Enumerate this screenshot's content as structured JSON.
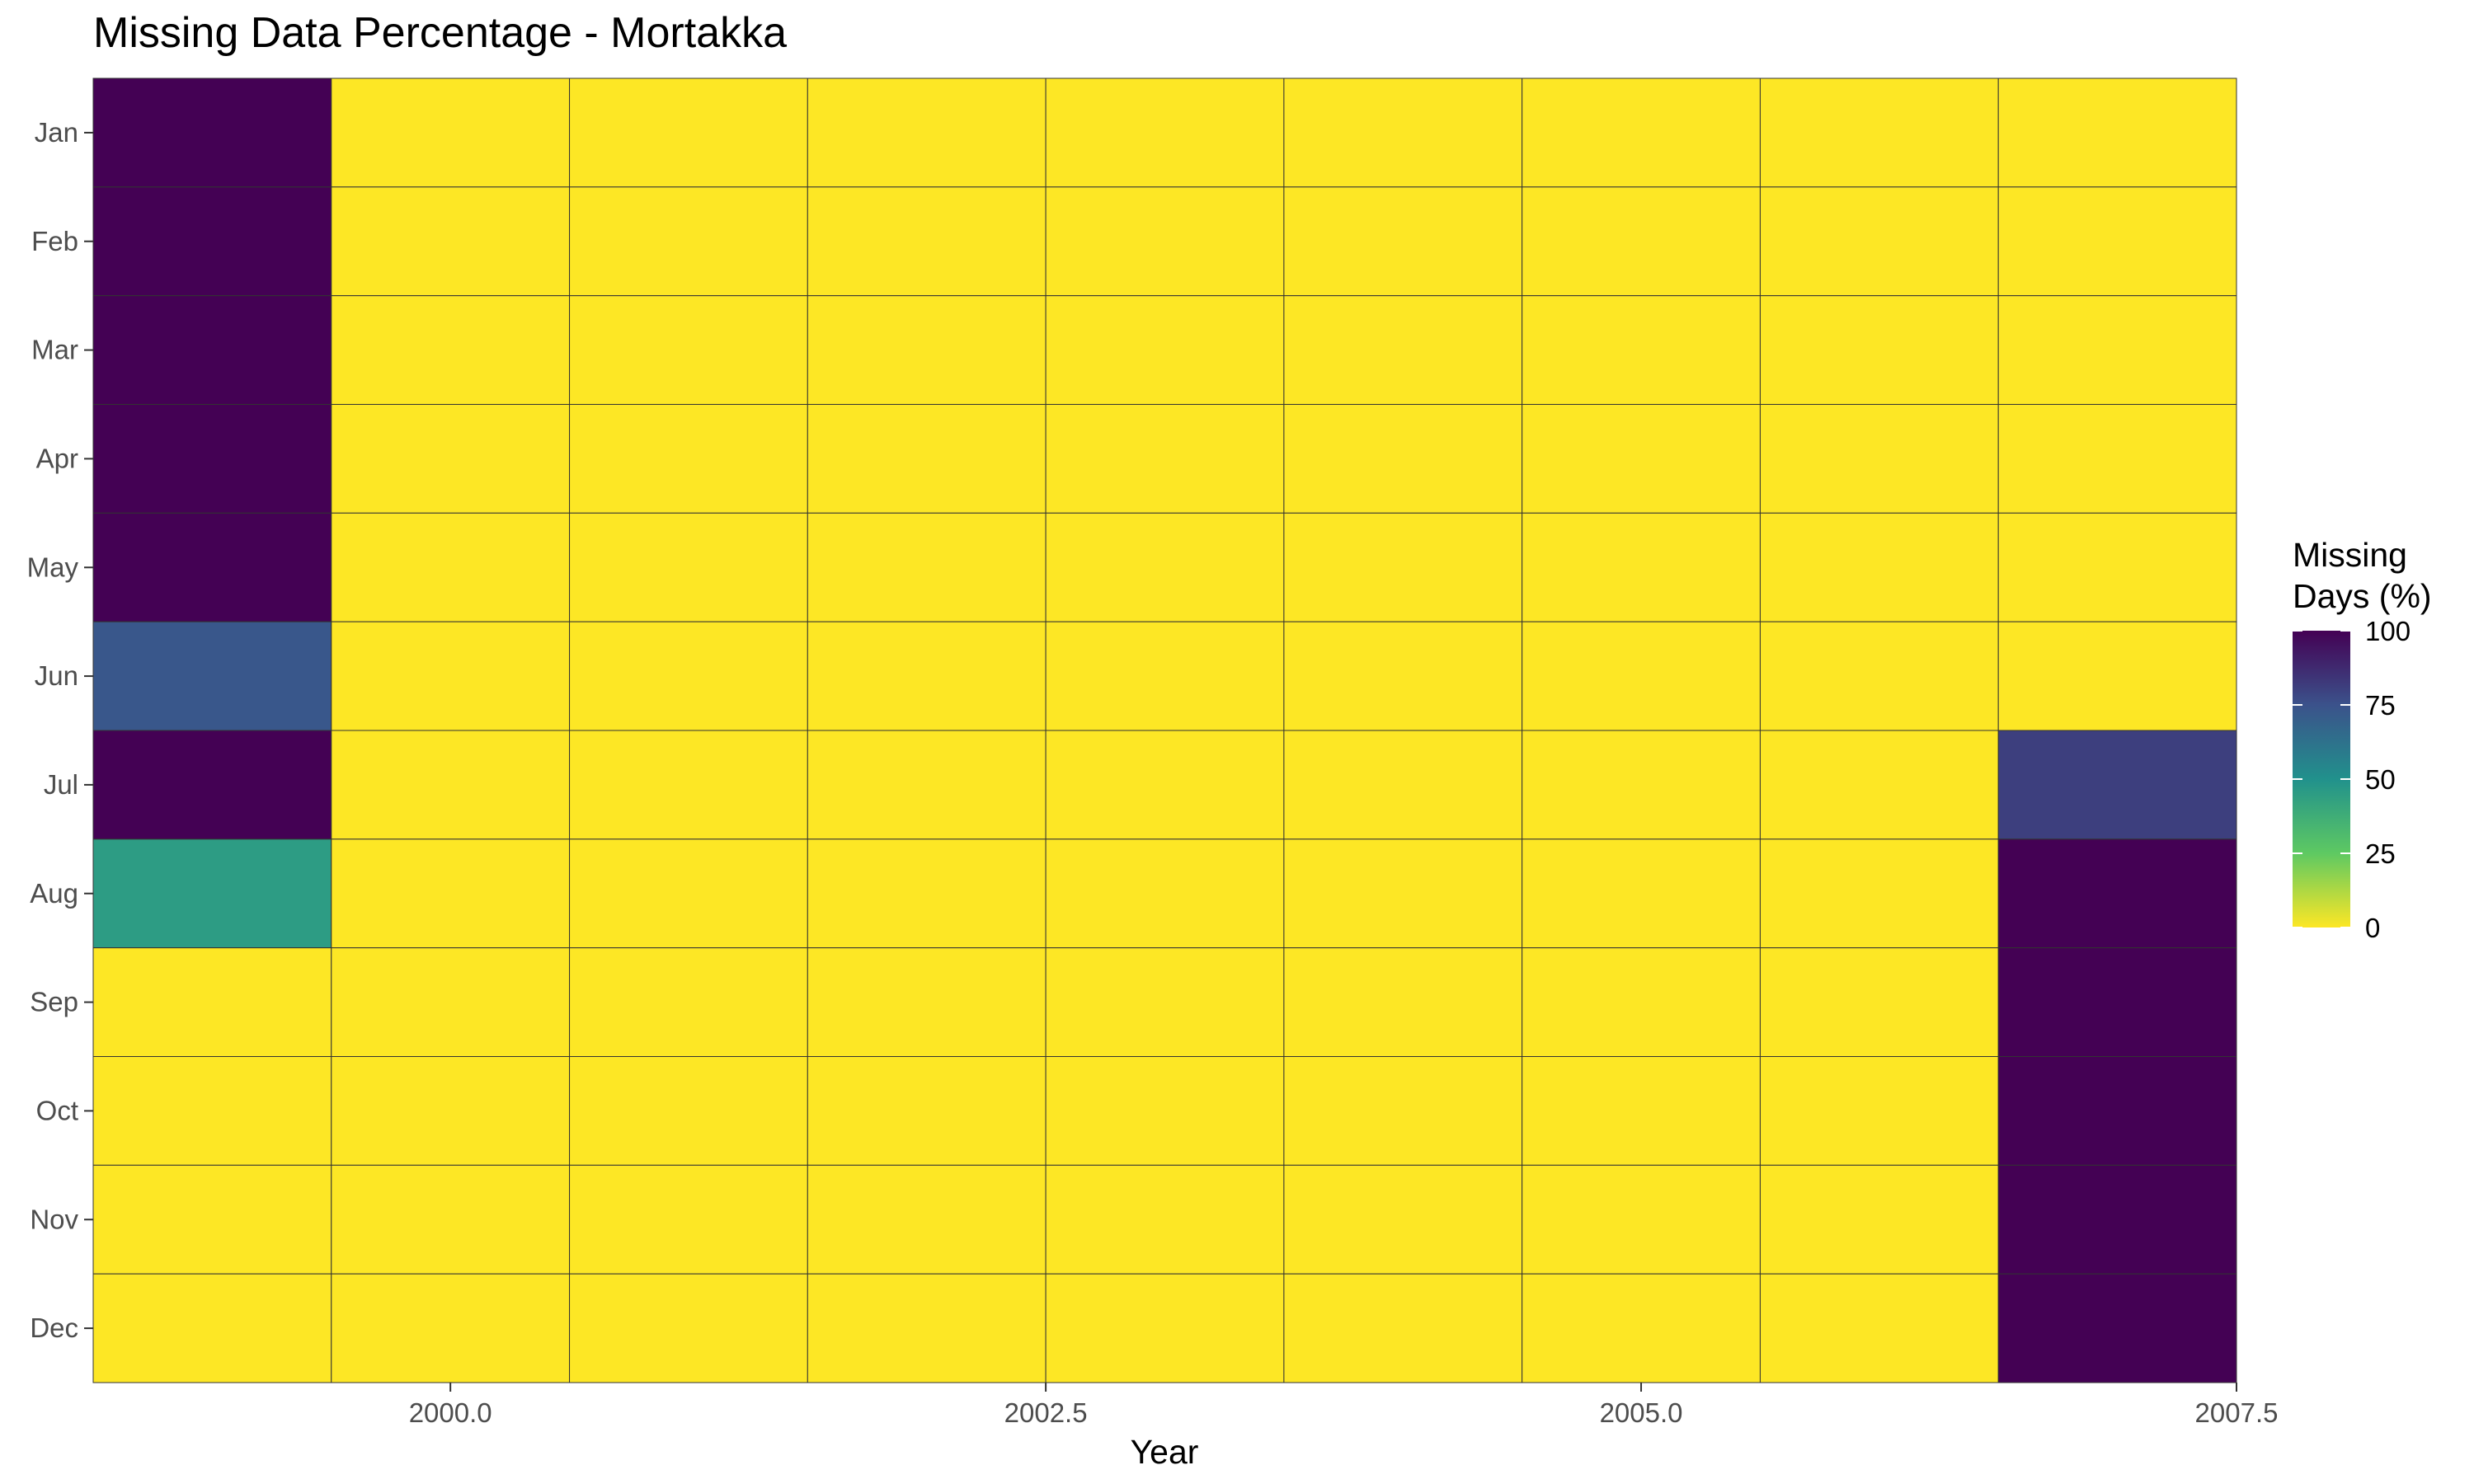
{
  "chart_data": {
    "type": "heatmap",
    "title": "Missing Data Percentage - Mortakka",
    "xlabel": "Year",
    "ylabel": "",
    "x": [
      1999,
      2000,
      2001,
      2002,
      2003,
      2004,
      2005,
      2006,
      2007
    ],
    "y": [
      "Jan",
      "Feb",
      "Mar",
      "Apr",
      "May",
      "Jun",
      "Jul",
      "Aug",
      "Sep",
      "Oct",
      "Nov",
      "Dec"
    ],
    "x_ticks": [
      "2000.0",
      "2002.5",
      "2005.0",
      "2007.5"
    ],
    "x_tick_values": [
      2000.0,
      2002.5,
      2005.0,
      2007.5
    ],
    "xlim": [
      1998.5,
      2007.5
    ],
    "values": [
      [
        100,
        0,
        0,
        0,
        0,
        0,
        0,
        0,
        0
      ],
      [
        100,
        0,
        0,
        0,
        0,
        0,
        0,
        0,
        0
      ],
      [
        100,
        0,
        0,
        0,
        0,
        0,
        0,
        0,
        0
      ],
      [
        100,
        0,
        0,
        0,
        0,
        0,
        0,
        0,
        0
      ],
      [
        100,
        0,
        0,
        0,
        0,
        0,
        0,
        0,
        0
      ],
      [
        73,
        0,
        0,
        0,
        0,
        0,
        0,
        0,
        0
      ],
      [
        100,
        0,
        0,
        0,
        0,
        0,
        0,
        0,
        81
      ],
      [
        45,
        0,
        0,
        0,
        0,
        0,
        0,
        0,
        100
      ],
      [
        0,
        0,
        0,
        0,
        0,
        0,
        0,
        0,
        100
      ],
      [
        0,
        0,
        0,
        0,
        0,
        0,
        0,
        0,
        100
      ],
      [
        0,
        0,
        0,
        0,
        0,
        0,
        0,
        0,
        100
      ],
      [
        0,
        0,
        0,
        0,
        0,
        0,
        0,
        0,
        100
      ]
    ],
    "legend": {
      "title_line1": "Missing",
      "title_line2": "Days (%)",
      "ticks": [
        100,
        75,
        50,
        25,
        0
      ],
      "tick_labels": [
        "100",
        "75",
        "50",
        "25",
        "0"
      ],
      "range": [
        0,
        100
      ],
      "position": "right"
    },
    "colormap": "viridis-reversed",
    "grid": false
  }
}
